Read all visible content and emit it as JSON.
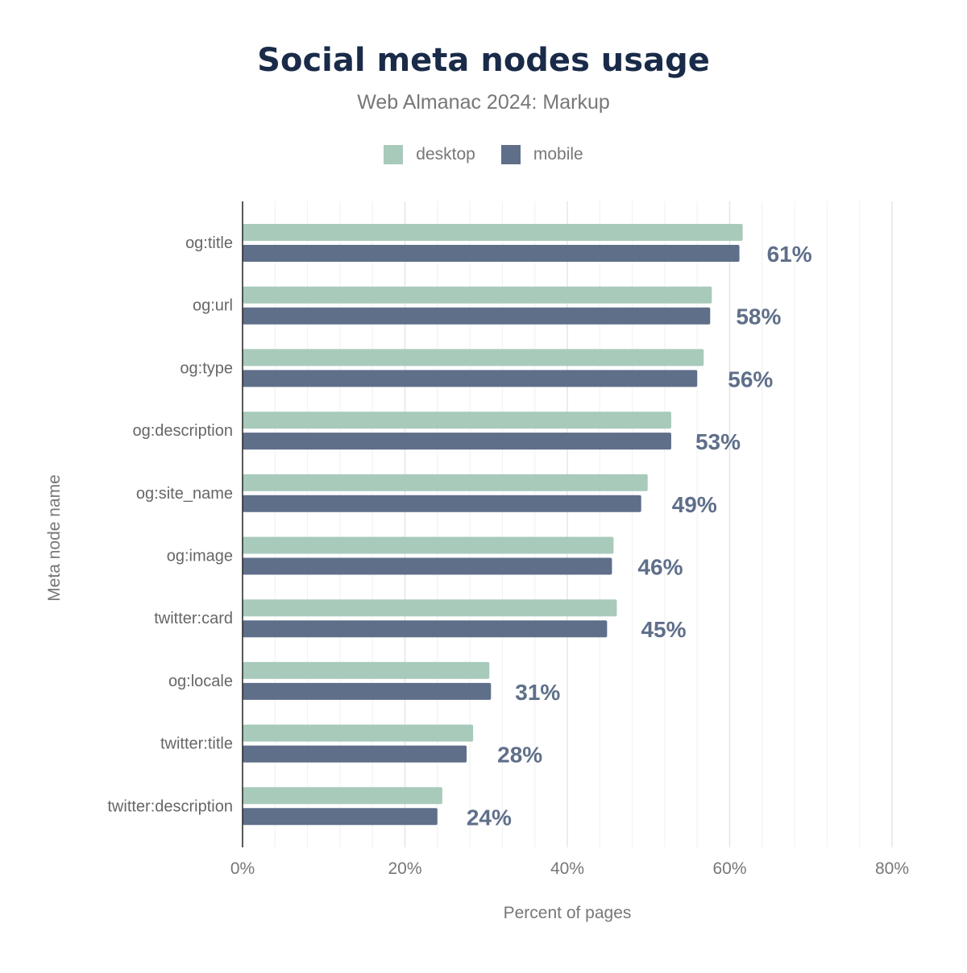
{
  "chart_data": {
    "type": "bar",
    "orientation": "horizontal",
    "title": "Social meta nodes usage",
    "subtitle": "Web Almanac 2024: Markup",
    "xlabel": "Percent of pages",
    "ylabel": "Meta node name",
    "xlim": [
      0,
      80
    ],
    "xticks": [
      "0%",
      "20%",
      "40%",
      "60%",
      "80%"
    ],
    "grid": true,
    "legend": "top",
    "categories": [
      "og:title",
      "og:url",
      "og:type",
      "og:description",
      "og:site_name",
      "og:image",
      "twitter:card",
      "og:locale",
      "twitter:title",
      "twitter:description"
    ],
    "series": [
      {
        "name": "desktop",
        "color": "#a8cabb",
        "values": [
          61.6,
          57.8,
          56.8,
          52.8,
          49.9,
          45.7,
          46.1,
          30.4,
          28.4,
          24.6
        ]
      },
      {
        "name": "mobile",
        "color": "#5f6f8a",
        "values": [
          61.2,
          57.6,
          56.0,
          52.8,
          49.1,
          45.5,
          44.9,
          30.6,
          27.6,
          24.0
        ]
      }
    ],
    "data_labels": [
      "61%",
      "58%",
      "56%",
      "53%",
      "49%",
      "46%",
      "45%",
      "31%",
      "28%",
      "24%"
    ]
  }
}
